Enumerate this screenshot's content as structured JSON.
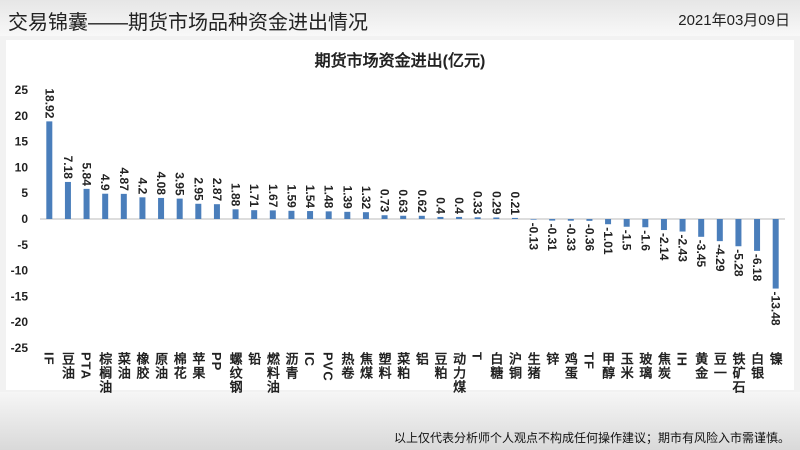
{
  "header": {
    "title": "交易锦囊——期货市场品种资金进出情况",
    "date": "2021年03月09日"
  },
  "footer": {
    "note": "以上仅代表分析师个人观点不构成任何操作建议；期市有风险入市需谨慎。"
  },
  "chart_data": {
    "type": "bar",
    "title": "期货市场资金进出(亿元)",
    "categories": [
      "IF",
      "豆油",
      "PTA",
      "棕榈油",
      "菜油",
      "橡胶",
      "原油",
      "棉花",
      "苹果",
      "PP",
      "螺纹钢",
      "铅",
      "燃料油",
      "沥青",
      "IC",
      "PVC",
      "热卷",
      "焦煤",
      "塑料",
      "菜粕",
      "铝",
      "豆粕",
      "动力煤",
      "T",
      "白糖",
      "沪铜",
      "生猪",
      "锌",
      "鸡蛋",
      "TF",
      "甲醇",
      "玉米",
      "玻璃",
      "焦炭",
      "IH",
      "黄金",
      "豆一",
      "铁矿石",
      "白银",
      "镍"
    ],
    "values": [
      18.92,
      7.18,
      5.84,
      4.9,
      4.87,
      4.2,
      4.08,
      3.95,
      2.95,
      2.87,
      1.88,
      1.71,
      1.67,
      1.59,
      1.54,
      1.48,
      1.39,
      1.32,
      0.73,
      0.63,
      0.62,
      0.4,
      0.4,
      0.33,
      0.29,
      0.21,
      -0.13,
      -0.31,
      -0.33,
      -0.36,
      -1.01,
      -1.5,
      -1.6,
      -2.14,
      -2.43,
      -3.45,
      -4.29,
      -5.28,
      -6.18,
      -13.48
    ],
    "color": "#4a7ebb",
    "ylim": [
      -25,
      25
    ],
    "yticks": [
      -25,
      -20,
      -15,
      -10,
      -5,
      0,
      5,
      10,
      15,
      20,
      25
    ],
    "grid": false
  }
}
